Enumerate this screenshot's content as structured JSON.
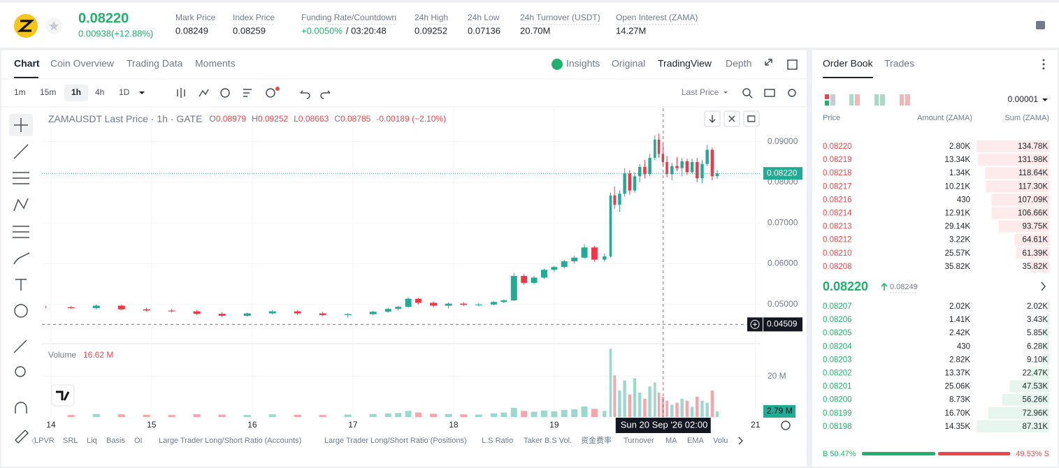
{
  "header": {
    "last_price": "0.08220",
    "change": "0.00938(+12.88%)",
    "stats": [
      {
        "label": "Mark Price",
        "value": "0.08249"
      },
      {
        "label": "Index Price",
        "value": "0.08259"
      },
      {
        "label": "Funding Rate/Countdown",
        "value": "+0.0050%",
        "value2": "/ 03:20:48"
      },
      {
        "label": "24h High",
        "value": "0.09252"
      },
      {
        "label": "24h Low",
        "value": "0.07136"
      },
      {
        "label": "24h Turnover (USDT)",
        "value": "20.70M"
      },
      {
        "label": "Open Interest (ZAMA)",
        "value": "14.27M"
      }
    ]
  },
  "chart_tabs": [
    "Chart",
    "Coin Overview",
    "Trading Data",
    "Moments"
  ],
  "view_tabs": [
    "Insights",
    "Original",
    "TradingView",
    "Depth"
  ],
  "intervals": [
    "1m",
    "15m",
    "1h",
    "4h",
    "1D"
  ],
  "price_type": "Last Price",
  "bottom_indicators": [
    "LPVR",
    "SRL",
    "Liq",
    "Basis",
    "OI",
    "Large Trader Long/Short Ratio (Accounts)",
    "Large Trader Long/Short Ratio (Positions)",
    "L.S Ratio",
    "Taker B.S Vol.",
    "资金费率",
    "Turnover",
    "MA",
    "EMA",
    "Volu"
  ],
  "chart_data": {
    "type": "candlestick",
    "title": "ZAMAUSDT Last Price · 1h · GATE",
    "ohlc_legend": [
      {
        "key": "O",
        "value": "0.08979"
      },
      {
        "key": "H",
        "value": "0.09252"
      },
      {
        "key": "L",
        "value": "0.08663"
      },
      {
        "key": "C",
        "value": "0.08785"
      }
    ],
    "legend_change": "-0.00189 (−2.10%)",
    "up_color": "#22ab94",
    "down_color": "#f23645",
    "x": [
      13.95,
      14.2,
      14.45,
      14.7,
      14.95,
      15.2,
      15.45,
      15.7,
      15.95,
      16.2,
      16.45,
      16.7,
      16.95,
      17.2,
      17.35,
      17.45,
      17.55,
      17.65,
      17.8,
      17.95,
      18.1,
      18.25,
      18.4,
      18.5,
      18.6,
      18.7,
      18.8,
      18.9,
      19.0,
      19.1,
      19.2,
      19.3,
      19.4,
      19.5,
      19.56,
      19.6,
      19.65,
      19.7,
      19.75,
      19.8,
      19.85,
      19.9,
      19.95,
      20.0,
      20.04,
      20.08,
      20.12,
      20.17,
      20.22,
      20.27,
      20.32,
      20.37,
      20.42,
      20.47,
      20.52,
      20.57,
      20.62
    ],
    "open": [
      0.0494,
      0.0493,
      0.0491,
      0.0497,
      0.0488,
      0.0485,
      0.0483,
      0.0477,
      0.0472,
      0.0478,
      0.0483,
      0.0478,
      0.0474,
      0.0476,
      0.0482,
      0.0489,
      0.0494,
      0.0514,
      0.0504,
      0.0497,
      0.0502,
      0.0499,
      0.05,
      0.0506,
      0.051,
      0.057,
      0.0553,
      0.0566,
      0.0585,
      0.0592,
      0.0606,
      0.0615,
      0.064,
      0.061,
      0.0618,
      0.0768,
      0.0745,
      0.0772,
      0.0822,
      0.078,
      0.0815,
      0.0838,
      0.082,
      0.086,
      0.0905,
      0.087,
      0.085,
      0.082,
      0.084,
      0.0835,
      0.0852,
      0.0825,
      0.085,
      0.081,
      0.0845,
      0.088,
      0.0815
    ],
    "high": [
      0.0497,
      0.0496,
      0.05,
      0.0499,
      0.0492,
      0.0489,
      0.0486,
      0.0481,
      0.048,
      0.0486,
      0.0486,
      0.0482,
      0.0479,
      0.0484,
      0.0492,
      0.0497,
      0.0518,
      0.0516,
      0.0508,
      0.0505,
      0.0506,
      0.0504,
      0.0508,
      0.0512,
      0.0578,
      0.0575,
      0.057,
      0.0588,
      0.0595,
      0.061,
      0.062,
      0.0648,
      0.0644,
      0.0625,
      0.0775,
      0.079,
      0.078,
      0.0835,
      0.083,
      0.0825,
      0.0845,
      0.0855,
      0.087,
      0.0915,
      0.092,
      0.0895,
      0.0865,
      0.0848,
      0.0862,
      0.086,
      0.0858,
      0.0858,
      0.086,
      0.0855,
      0.0892,
      0.0885,
      0.083
    ],
    "low": [
      0.0491,
      0.0489,
      0.0488,
      0.0486,
      0.0482,
      0.048,
      0.0474,
      0.0469,
      0.047,
      0.0475,
      0.0474,
      0.0471,
      0.0468,
      0.0474,
      0.048,
      0.0485,
      0.0492,
      0.05,
      0.0493,
      0.049,
      0.0496,
      0.0495,
      0.0498,
      0.0503,
      0.0508,
      0.0548,
      0.055,
      0.0563,
      0.058,
      0.0588,
      0.06,
      0.0612,
      0.0605,
      0.0605,
      0.0615,
      0.0735,
      0.0728,
      0.0765,
      0.077,
      0.0775,
      0.08,
      0.081,
      0.0815,
      0.0855,
      0.086,
      0.084,
      0.0812,
      0.0805,
      0.0828,
      0.0815,
      0.0818,
      0.0822,
      0.08,
      0.0798,
      0.084,
      0.0805,
      0.0808
    ],
    "close": [
      0.0493,
      0.0491,
      0.0497,
      0.0488,
      0.0485,
      0.0483,
      0.0477,
      0.0472,
      0.0478,
      0.0483,
      0.0478,
      0.0474,
      0.0476,
      0.0482,
      0.0489,
      0.0494,
      0.0514,
      0.0504,
      0.0497,
      0.0502,
      0.0499,
      0.05,
      0.0506,
      0.051,
      0.057,
      0.0553,
      0.0566,
      0.0585,
      0.0592,
      0.0606,
      0.0615,
      0.064,
      0.061,
      0.0618,
      0.0768,
      0.0745,
      0.0772,
      0.0822,
      0.078,
      0.0815,
      0.0838,
      0.082,
      0.086,
      0.0905,
      0.087,
      0.085,
      0.082,
      0.084,
      0.0835,
      0.0852,
      0.0825,
      0.085,
      0.081,
      0.0845,
      0.088,
      0.0815,
      0.0822
    ],
    "volume": [
      1.2,
      1.0,
      1.5,
      1.3,
      1.1,
      1.0,
      1.4,
      1.2,
      1.0,
      1.3,
      1.1,
      1.0,
      1.2,
      1.5,
      1.8,
      2.0,
      3.0,
      2.2,
      1.6,
      1.5,
      1.3,
      1.2,
      1.8,
      2.2,
      4.5,
      3.0,
      2.6,
      3.2,
      2.8,
      3.5,
      3.8,
      5.2,
      4.0,
      3.0,
      33.6,
      20.5,
      13.0,
      18.0,
      11.0,
      19.0,
      12.0,
      9.0,
      15.0,
      17.0,
      12.0,
      10.0,
      8.0,
      6.0,
      7.0,
      9.0,
      8.0,
      5.0,
      10.0,
      8.0,
      7.0,
      13.0,
      2.79
    ],
    "xlim": [
      13.91,
      21.05
    ],
    "xticks": [
      14,
      15,
      16,
      17,
      18,
      19,
      21
    ],
    "ylim": [
      0.0407,
      0.0982
    ],
    "yticks": [
      {
        "value": 0.05,
        "label": "0.05000"
      },
      {
        "value": 0.06,
        "label": "0.06000"
      },
      {
        "value": 0.07,
        "label": "0.07000"
      },
      {
        "value": 0.08,
        "label": "0.08000"
      },
      {
        "value": 0.09,
        "label": "0.09000"
      }
    ],
    "volume_title": "Volume",
    "volume_legend": "16.62 M",
    "volume_ylim": [
      0,
      35.7
    ],
    "volume_yticks": [
      {
        "value": 20,
        "label": "20 M"
      }
    ],
    "last_volume_label": "2.79 M",
    "last_price": {
      "value": 0.0822,
      "label": "0.08220"
    },
    "crosshair": {
      "x": {
        "value": 20.083,
        "label": "Sun 20 Sep '26"
      },
      "time": "02:00",
      "price": {
        "value": 0.04509,
        "label": "0.04509"
      }
    }
  },
  "order_book": {
    "tabs": [
      "Order Book",
      "Trades"
    ],
    "tick_size": "0.00001",
    "columns": [
      "Price",
      "Amount (ZAMA)",
      "Sum (ZAMA)"
    ],
    "asks": [
      {
        "price": "0.08220",
        "amount": "2.80K",
        "sum": {
          "value": 134780,
          "label": "134.78K"
        }
      },
      {
        "price": "0.08219",
        "amount": "13.34K",
        "sum": {
          "value": 131980,
          "label": "131.98K"
        }
      },
      {
        "price": "0.08218",
        "amount": "1.34K",
        "sum": {
          "value": 118640,
          "label": "118.64K"
        }
      },
      {
        "price": "0.08217",
        "amount": "10.21K",
        "sum": {
          "value": 117300,
          "label": "117.30K"
        }
      },
      {
        "price": "0.08216",
        "amount": "430",
        "sum": {
          "value": 107090,
          "label": "107.09K"
        }
      },
      {
        "price": "0.08214",
        "amount": "12.91K",
        "sum": {
          "value": 106660,
          "label": "106.66K"
        }
      },
      {
        "price": "0.08213",
        "amount": "29.14K",
        "sum": {
          "value": 93750,
          "label": "93.75K"
        }
      },
      {
        "price": "0.08212",
        "amount": "3.22K",
        "sum": {
          "value": 64610,
          "label": "64.61K"
        }
      },
      {
        "price": "0.08210",
        "amount": "25.57K",
        "sum": {
          "value": 61390,
          "label": "61.39K"
        }
      },
      {
        "price": "0.08208",
        "amount": "35.82K",
        "sum": {
          "value": 35820,
          "label": "35.82K"
        }
      }
    ],
    "mid_price": "0.08220",
    "mark_price": "0.08249",
    "bids": [
      {
        "price": "0.08207",
        "amount": "2.02K",
        "sum": {
          "value": 2020,
          "label": "2.02K"
        }
      },
      {
        "price": "0.08206",
        "amount": "1.41K",
        "sum": {
          "value": 3430,
          "label": "3.43K"
        }
      },
      {
        "price": "0.08205",
        "amount": "2.42K",
        "sum": {
          "value": 5850,
          "label": "5.85K"
        }
      },
      {
        "price": "0.08204",
        "amount": "430",
        "sum": {
          "value": 6280,
          "label": "6.28K"
        }
      },
      {
        "price": "0.08203",
        "amount": "2.82K",
        "sum": {
          "value": 9100,
          "label": "9.10K"
        }
      },
      {
        "price": "0.08202",
        "amount": "13.37K",
        "sum": {
          "value": 22470,
          "label": "22.47K"
        }
      },
      {
        "price": "0.08201",
        "amount": "25.06K",
        "sum": {
          "value": 47530,
          "label": "47.53K"
        }
      },
      {
        "price": "0.08200",
        "amount": "8.73K",
        "sum": {
          "value": 56260,
          "label": "56.26K"
        }
      },
      {
        "price": "0.08199",
        "amount": "16.70K",
        "sum": {
          "value": 72960,
          "label": "72.96K"
        }
      },
      {
        "price": "0.08198",
        "amount": "14.35K",
        "sum": {
          "value": 87310,
          "label": "87.31K"
        }
      }
    ],
    "buy_ratio": {
      "value": 50.47,
      "label": "B 50.47%"
    },
    "sell_ratio": {
      "value": 49.53,
      "label": "49.53% S"
    }
  }
}
